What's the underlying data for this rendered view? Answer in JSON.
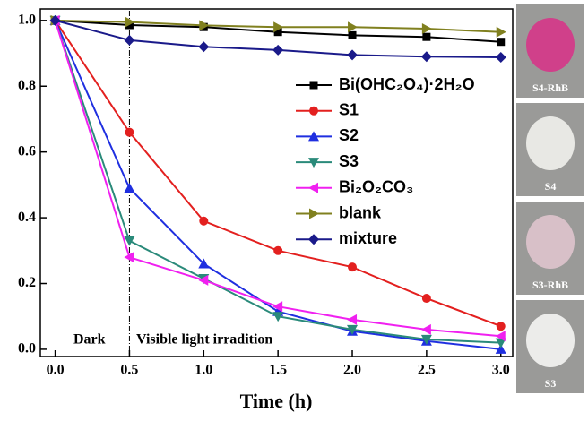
{
  "chart_data": {
    "type": "line",
    "x_label": "Time (h)",
    "x": [
      0,
      0.5,
      1,
      1.5,
      2,
      2.5,
      3
    ],
    "series": [
      {
        "name": "Bi(OHC₂O₄)·2H₂O",
        "color": "#000000",
        "marker": "square",
        "values": [
          1.0,
          0.986,
          0.98,
          0.965,
          0.955,
          0.95,
          0.935
        ]
      },
      {
        "name": "S1",
        "color": "#e3201f",
        "marker": "circle",
        "values": [
          1.0,
          0.66,
          0.39,
          0.3,
          0.25,
          0.155,
          0.07
        ]
      },
      {
        "name": "S2",
        "color": "#1f2fe0",
        "marker": "triangle-up",
        "values": [
          1.0,
          0.49,
          0.26,
          0.115,
          0.055,
          0.025,
          0.0
        ]
      },
      {
        "name": "S3",
        "color": "#2a8a7a",
        "marker": "triangle-down",
        "values": [
          1.0,
          0.33,
          0.215,
          0.1,
          0.06,
          0.03,
          0.02
        ]
      },
      {
        "name": "Bi₂O₂CO₃",
        "color": "#f020f0",
        "marker": "triangle-left",
        "values": [
          1.0,
          0.28,
          0.21,
          0.13,
          0.09,
          0.06,
          0.04
        ]
      },
      {
        "name": "blank",
        "color": "#80801f",
        "marker": "triangle-right",
        "values": [
          1.0,
          0.995,
          0.985,
          0.98,
          0.98,
          0.975,
          0.965
        ]
      },
      {
        "name": "mixture",
        "color": "#1a1a8a",
        "marker": "diamond",
        "values": [
          1.0,
          0.94,
          0.92,
          0.91,
          0.895,
          0.89,
          0.888
        ]
      }
    ],
    "xlim": [
      -0.1,
      3.08
    ],
    "ylim": [
      -0.022,
      1.035
    ],
    "xticks": [
      {
        "value": 0,
        "label": "0.0"
      },
      {
        "value": 0.5,
        "label": "0.5"
      },
      {
        "value": 1,
        "label": "1.0"
      },
      {
        "value": 1.5,
        "label": "1.5"
      },
      {
        "value": 2,
        "label": "2.0"
      },
      {
        "value": 2.5,
        "label": "2.5"
      },
      {
        "value": 3,
        "label": "3.0"
      }
    ],
    "yticks": [
      {
        "value": 0,
        "label": "0.0"
      },
      {
        "value": 0.2,
        "label": "0.2"
      },
      {
        "value": 0.4,
        "label": "0.4"
      },
      {
        "value": 0.6,
        "label": "0.6"
      },
      {
        "value": 0.8,
        "label": "0.8"
      },
      {
        "value": 1,
        "label": "1.0"
      }
    ],
    "annotations": [
      "Dark",
      "Visible light irradition"
    ],
    "legend": "upper right"
  },
  "photos": [
    {
      "label": "S4-RhB",
      "color": "#d0408a"
    },
    {
      "label": "S4",
      "color": "#e8e8e4"
    },
    {
      "label": "S3-RhB",
      "color": "#d8c0c8"
    },
    {
      "label": "S3",
      "color": "#ececea"
    }
  ]
}
